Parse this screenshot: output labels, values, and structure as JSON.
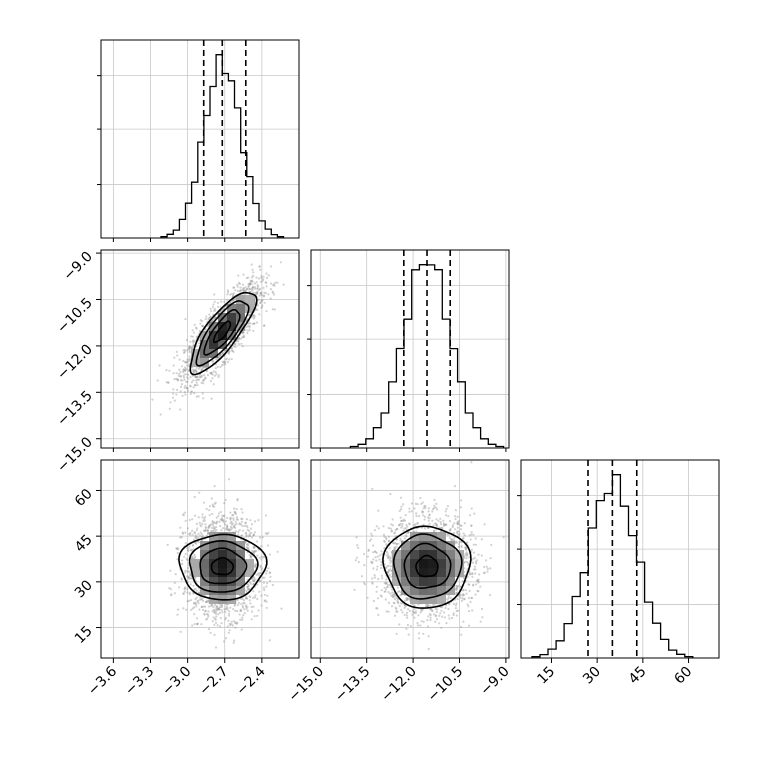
{
  "chart_data": {
    "type": "corner",
    "grid": true,
    "title": "",
    "parameters": [
      {
        "label": "",
        "range": [
          -3.7,
          -2.1
        ],
        "ticks": [
          -3.6,
          -3.3,
          -3.0,
          -2.7,
          -2.4
        ],
        "tick_labels": [
          "−3.6",
          "−3.3",
          "−3.0",
          "−2.7",
          "−2.4"
        ],
        "mean": -2.72,
        "sd": 0.15,
        "quantiles": [
          -2.87,
          -2.72,
          -2.53
        ]
      },
      {
        "label": "",
        "range": [
          -15.3,
          -8.9
        ],
        "ticks": [
          -15.0,
          -13.5,
          -12.0,
          -10.5,
          -9.0
        ],
        "tick_labels": [
          "−15.0",
          "−13.5",
          "−12.0",
          "−10.5",
          "−9.0"
        ],
        "mean": -11.55,
        "sd": 0.75,
        "quantiles": [
          -12.3,
          -11.55,
          -10.8
        ]
      },
      {
        "label": "",
        "range": [
          5,
          70
        ],
        "ticks": [
          15,
          30,
          45,
          60
        ],
        "tick_labels": [
          "15",
          "30",
          "45",
          "60"
        ],
        "mean": 35,
        "sd": 8,
        "quantiles": [
          27,
          35,
          43
        ]
      }
    ],
    "correlations": {
      "0-1": 0.8,
      "0-2": 0.0,
      "1-2": 0.0
    },
    "histogram_bins": 20,
    "contour_levels": 4
  }
}
